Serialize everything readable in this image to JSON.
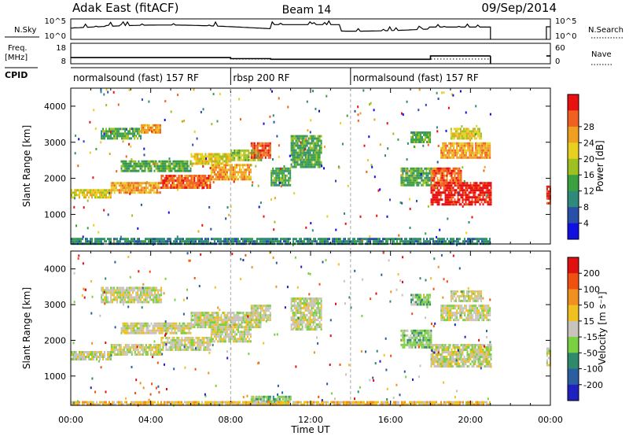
{
  "header": {
    "station": "Adak East (fitACF)",
    "beam": "Beam 14",
    "date": "09/Sep/2014"
  },
  "nsky_panel": {
    "left_label": "N.Sky",
    "left_ticks": [
      "10^5",
      "10^0"
    ],
    "right_ticks": [
      "10^5",
      "10^0"
    ],
    "right_label": "N.Search"
  },
  "freq_panel": {
    "left_label_top": "Freq.",
    "left_label_bottom": "[MHz]",
    "left_ticks": [
      "18",
      "8"
    ],
    "right_ticks": [
      "60",
      "0"
    ],
    "right_label": "Nave"
  },
  "cpid_panel": {
    "label": "CPID",
    "segments": [
      {
        "name": "normalsound (fast) 157 RF",
        "start_hour": 0.0,
        "end_hour": 8.0
      },
      {
        "name": "rbsp 200 RF",
        "start_hour": 8.0,
        "end_hour": 14.0
      },
      {
        "name": "normalsound (fast) 157 RF",
        "start_hour": 14.0,
        "end_hour": 24.0
      }
    ]
  },
  "chart_data": [
    {
      "type": "heatmap",
      "name": "power",
      "ylabel": "Slant Range [km]",
      "yticks": [
        "1000",
        "2000",
        "3000",
        "4000"
      ],
      "ylim": [
        180,
        4500
      ],
      "xlim": [
        0,
        24
      ],
      "colorbar": {
        "label": "Power [dB]",
        "ticks": [
          "4",
          "8",
          "12",
          "16",
          "20",
          "24",
          "28"
        ],
        "colors": [
          "#1010e0",
          "#2a4fa8",
          "#2e8a7a",
          "#3aa040",
          "#9ec020",
          "#e8d020",
          "#f0a020",
          "#f06020",
          "#e81010"
        ]
      },
      "bands": [
        {
          "x": [
            0.0,
            2.0
          ],
          "y": [
            1500,
            1700
          ],
          "level": 5
        },
        {
          "x": [
            2.0,
            4.5
          ],
          "y": [
            1600,
            1900
          ],
          "level": 6
        },
        {
          "x": [
            4.5,
            7.0
          ],
          "y": [
            1750,
            2100
          ],
          "level": 7
        },
        {
          "x": [
            7.0,
            9.0
          ],
          "y": [
            2000,
            2400
          ],
          "level": 6
        },
        {
          "x": [
            2.5,
            6.0
          ],
          "y": [
            2200,
            2500
          ],
          "level": 3
        },
        {
          "x": [
            6.0,
            8.0
          ],
          "y": [
            2400,
            2700
          ],
          "level": 5
        },
        {
          "x": [
            8.0,
            9.5
          ],
          "y": [
            2500,
            2800
          ],
          "level": 4
        },
        {
          "x": [
            9.0,
            10.0
          ],
          "y": [
            2600,
            3000
          ],
          "level": 7
        },
        {
          "x": [
            10.0,
            11.0
          ],
          "y": [
            1800,
            2300
          ],
          "level": 3
        },
        {
          "x": [
            11.0,
            12.5
          ],
          "y": [
            2300,
            3200
          ],
          "level": 3
        },
        {
          "x": [
            1.5,
            3.5
          ],
          "y": [
            3100,
            3400
          ],
          "level": 3
        },
        {
          "x": [
            3.5,
            4.5
          ],
          "y": [
            3300,
            3500
          ],
          "level": 6
        },
        {
          "x": [
            16.5,
            18.0
          ],
          "y": [
            1800,
            2300
          ],
          "level": 3
        },
        {
          "x": [
            18.0,
            21.0
          ],
          "y": [
            1300,
            1900
          ],
          "level": 8
        },
        {
          "x": [
            18.0,
            19.5
          ],
          "y": [
            1900,
            2300
          ],
          "level": 7
        },
        {
          "x": [
            17.0,
            18.0
          ],
          "y": [
            3000,
            3300
          ],
          "level": 3
        },
        {
          "x": [
            18.5,
            21.0
          ],
          "y": [
            2600,
            3000
          ],
          "level": 6
        },
        {
          "x": [
            19.0,
            20.5
          ],
          "y": [
            3100,
            3400
          ],
          "level": 5
        },
        {
          "x": [
            23.8,
            24.0
          ],
          "y": [
            1300,
            1800
          ],
          "level": 8
        },
        {
          "x": [
            0.0,
            21.0
          ],
          "y": [
            200,
            350
          ],
          "level": 2
        }
      ]
    },
    {
      "type": "heatmap",
      "name": "velocity",
      "ylabel": "Slant Range [km]",
      "yticks": [
        "1000",
        "2000",
        "3000",
        "4000"
      ],
      "ylim": [
        180,
        4500
      ],
      "xlim": [
        0,
        24
      ],
      "xticks": [
        "00:00",
        "04:00",
        "08:00",
        "12:00",
        "16:00",
        "20:00",
        "00:00"
      ],
      "xlabel": "Time UT",
      "colorbar": {
        "label": "Velocity [m s⁻¹]",
        "ticks": [
          "200",
          "100",
          "50",
          "15",
          "-15",
          "-50",
          "-100",
          "-200"
        ],
        "colors": [
          "#2020c0",
          "#2a5ea0",
          "#2e8a6a",
          "#7ad040",
          "#c8c4bc",
          "#f0c020",
          "#f09020",
          "#f05010",
          "#e01010"
        ]
      },
      "bands": [
        {
          "x": [
            0.0,
            2.0
          ],
          "y": [
            1500,
            1700
          ],
          "level": 4
        },
        {
          "x": [
            2.0,
            4.5
          ],
          "y": [
            1600,
            1900
          ],
          "level": 4
        },
        {
          "x": [
            4.5,
            7.0
          ],
          "y": [
            1750,
            2100
          ],
          "level": 4
        },
        {
          "x": [
            7.0,
            9.0
          ],
          "y": [
            2000,
            2400
          ],
          "level": 4
        },
        {
          "x": [
            2.5,
            6.0
          ],
          "y": [
            2200,
            2500
          ],
          "level": 4
        },
        {
          "x": [
            6.0,
            9.5
          ],
          "y": [
            2400,
            2800
          ],
          "level": 4
        },
        {
          "x": [
            9.0,
            10.0
          ],
          "y": [
            2600,
            3000
          ],
          "level": 4
        },
        {
          "x": [
            11.0,
            12.5
          ],
          "y": [
            2300,
            3200
          ],
          "level": 4
        },
        {
          "x": [
            1.5,
            4.5
          ],
          "y": [
            3100,
            3500
          ],
          "level": 4
        },
        {
          "x": [
            16.5,
            18.0
          ],
          "y": [
            1800,
            2300
          ],
          "level": 3
        },
        {
          "x": [
            18.0,
            21.0
          ],
          "y": [
            1300,
            1900
          ],
          "level": 4
        },
        {
          "x": [
            17.0,
            18.0
          ],
          "y": [
            3000,
            3300
          ],
          "level": 3
        },
        {
          "x": [
            18.5,
            21.0
          ],
          "y": [
            2600,
            3000
          ],
          "level": 4
        },
        {
          "x": [
            19.0,
            20.5
          ],
          "y": [
            3100,
            3400
          ],
          "level": 4
        },
        {
          "x": [
            23.8,
            24.0
          ],
          "y": [
            1300,
            1800
          ],
          "level": 4
        },
        {
          "x": [
            9.0,
            11.0
          ],
          "y": [
            250,
            450
          ],
          "level": 3
        },
        {
          "x": [
            0.0,
            21.0
          ],
          "y": [
            200,
            300
          ],
          "level": 5
        }
      ]
    }
  ]
}
